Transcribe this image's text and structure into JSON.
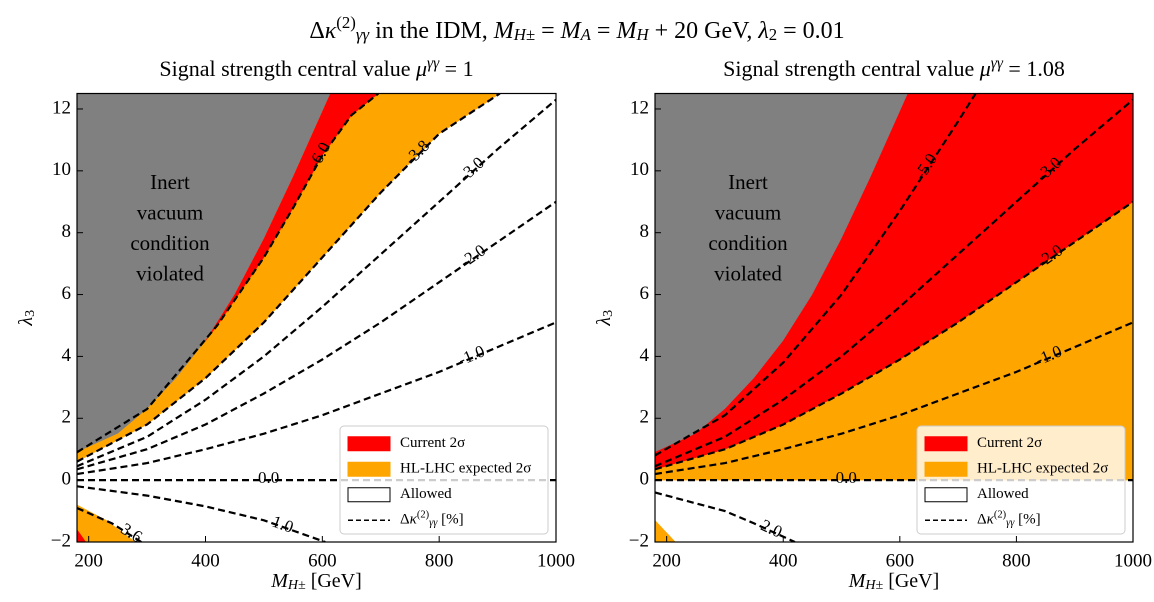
{
  "title": [
    {
      "text": "Δ"
    },
    {
      "text": "κ",
      "italic": true
    },
    {
      "text": "(2)",
      "pos": "sup"
    },
    {
      "text": "γγ",
      "pos": "sub",
      "italic": true
    },
    {
      "text": " in the IDM, "
    },
    {
      "text": "M",
      "italic": true
    },
    {
      "text": "H±",
      "pos": "sub",
      "italic": true
    },
    {
      "text": " = "
    },
    {
      "text": "M",
      "italic": true
    },
    {
      "text": "A",
      "pos": "sub",
      "italic": true
    },
    {
      "text": " = "
    },
    {
      "text": "M",
      "italic": true
    },
    {
      "text": "H",
      "pos": "sub",
      "italic": true
    },
    {
      "text": " + 20 GeV,  "
    },
    {
      "text": "λ",
      "italic": true
    },
    {
      "text": "2",
      "pos": "sub"
    },
    {
      "text": " = 0.01"
    }
  ],
  "chart_data": [
    {
      "type": "contour",
      "subtitle": [
        {
          "text": "Signal strength central value "
        },
        {
          "text": "μ",
          "italic": true
        },
        {
          "text": "γγ",
          "pos": "sup",
          "italic": true
        },
        {
          "text": " = 1"
        }
      ],
      "xlabel": [
        {
          "text": "M",
          "italic": true
        },
        {
          "text": "H±",
          "pos": "sub",
          "italic": true
        },
        {
          "text": " [GeV]"
        }
      ],
      "ylabel": [
        {
          "text": "λ",
          "italic": true
        },
        {
          "text": "3",
          "pos": "sub"
        }
      ],
      "xlim": [
        180,
        1000
      ],
      "ylim": [
        -2,
        12.5
      ],
      "xticks": [
        200,
        400,
        600,
        800,
        1000
      ],
      "yticks": [
        {
          "value": -2,
          "label": "−2"
        },
        0,
        2,
        4,
        6,
        8,
        10,
        12
      ],
      "legend_loc": "lower right",
      "regions": [
        {
          "name": "Current 2σ",
          "color": "#ff0000",
          "x": [
            400,
            450,
            500,
            550,
            614,
            696,
            650,
            600,
            550,
            500,
            420,
            null,
            180,
            195,
            180
          ],
          "y": [
            4.5,
            6.0,
            7.8,
            9.8,
            12.5,
            12.5,
            11.8,
            10.5,
            8.8,
            7.2,
            5.0,
            null,
            -1.6,
            -2,
            -2
          ]
        },
        {
          "name": "HL-LHC expected 2σ",
          "color": "#ffa500",
          "x": [
            180,
            250,
            300,
            350,
            400,
            450,
            500,
            550,
            614,
            904,
            800,
            700,
            600,
            500,
            400,
            300,
            180,
            null,
            180,
            230,
            280,
            180
          ],
          "y": [
            0.9,
            1.5,
            2.3,
            3.3,
            4.5,
            6.0,
            7.8,
            9.8,
            12.5,
            12.5,
            11.2,
            9.3,
            7.2,
            5.1,
            3.3,
            1.8,
            0.6,
            null,
            -0.8,
            -1.3,
            -2,
            -2
          ]
        },
        {
          "name": "Allowed",
          "color": "#ffffff"
        },
        {
          "annotation": [
            "Inert",
            "vacuum",
            "condition",
            "violated"
          ],
          "color": "#808080",
          "x": [
            180,
            250,
            300,
            350,
            400,
            450,
            500,
            550,
            614,
            180
          ],
          "y": [
            0.9,
            1.5,
            2.3,
            3.3,
            4.5,
            6.0,
            7.8,
            9.8,
            12.5,
            12.5
          ]
        }
      ],
      "contour_legend": [
        {
          "text": "Δ"
        },
        {
          "text": "κ",
          "italic": true
        },
        {
          "text": "(2)",
          "pos": "sup"
        },
        {
          "text": "γγ",
          "pos": "sub",
          "italic": true
        },
        {
          "text": " [%]"
        }
      ],
      "contours": [
        {
          "label": "-1.0",
          "x": [
            180,
            300,
            400,
            500,
            600,
            700,
            800,
            900,
            1000
          ],
          "y": [
            0.2,
            0.55,
            1.0,
            1.5,
            2.1,
            2.8,
            3.5,
            4.3,
            5.1
          ]
        },
        {
          "label": "-2.0",
          "x": [
            180,
            300,
            400,
            500,
            600,
            700,
            800,
            900,
            1000
          ],
          "y": [
            0.35,
            1.0,
            1.8,
            2.8,
            3.9,
            5.1,
            6.4,
            7.7,
            9.0
          ]
        },
        {
          "label": "-3.0",
          "x": [
            180,
            300,
            400,
            500,
            600,
            700,
            800,
            900,
            1000
          ],
          "y": [
            0.45,
            1.4,
            2.6,
            4.0,
            5.6,
            7.3,
            9.0,
            10.7,
            12.3
          ]
        },
        {
          "label": "-3.8",
          "x": [
            180,
            300,
            400,
            500,
            600,
            700,
            800,
            904
          ],
          "y": [
            0.6,
            1.8,
            3.3,
            5.1,
            7.2,
            9.3,
            11.2,
            12.5
          ]
        },
        {
          "label": "-6.0",
          "x": [
            180,
            300,
            420,
            500,
            550,
            600,
            650,
            696
          ],
          "y": [
            0.9,
            2.3,
            5.0,
            7.2,
            8.8,
            10.5,
            11.8,
            12.5
          ]
        },
        {
          "label": "0.0",
          "x": [
            180,
            1000
          ],
          "y": [
            0,
            0
          ]
        },
        {
          "label": "1.0",
          "x": [
            180,
            300,
            400,
            500,
            605
          ],
          "y": [
            -0.2,
            -0.5,
            -0.85,
            -1.3,
            -2
          ]
        },
        {
          "label": "3.6",
          "x": [
            180,
            240,
            290
          ],
          "y": [
            -0.9,
            -1.4,
            -2
          ]
        }
      ]
    },
    {
      "type": "contour",
      "subtitle": [
        {
          "text": "Signal strength central value "
        },
        {
          "text": "μ",
          "italic": true
        },
        {
          "text": "γγ",
          "pos": "sup",
          "italic": true
        },
        {
          "text": " = 1.08"
        }
      ],
      "xlabel": [
        {
          "text": "M",
          "italic": true
        },
        {
          "text": "H±",
          "pos": "sub",
          "italic": true
        },
        {
          "text": " [GeV]"
        }
      ],
      "ylabel": [
        {
          "text": "λ",
          "italic": true
        },
        {
          "text": "3",
          "pos": "sub"
        }
      ],
      "xlim": [
        180,
        1000
      ],
      "ylim": [
        -2,
        12.5
      ],
      "xticks": [
        200,
        400,
        600,
        800,
        1000
      ],
      "yticks": [
        {
          "value": -2,
          "label": "−2"
        },
        0,
        2,
        4,
        6,
        8,
        10,
        12
      ],
      "legend_loc": "lower right",
      "regions": [
        {
          "name": "Current 2σ",
          "color": "#ff0000",
          "x": [
            180,
            300,
            400,
            500,
            600,
            700,
            800,
            900,
            1000,
            1000,
            614,
            550,
            500,
            450,
            400,
            350,
            300,
            250,
            180
          ],
          "y": [
            0.35,
            1.0,
            1.8,
            2.8,
            3.9,
            5.1,
            6.4,
            7.7,
            9.0,
            12.5,
            12.5,
            9.8,
            7.8,
            6.0,
            4.5,
            3.3,
            2.3,
            1.5,
            0.9
          ]
        },
        {
          "name": "HL-LHC expected 2σ",
          "color": "#ffa500",
          "x": [
            180,
            1000,
            1000,
            900,
            800,
            700,
            600,
            500,
            400,
            300,
            180,
            null,
            180,
            215,
            180
          ],
          "y": [
            0,
            0,
            9.0,
            7.7,
            6.4,
            5.1,
            3.9,
            2.8,
            1.8,
            1.0,
            0.35,
            null,
            -1.3,
            -2,
            -2
          ]
        },
        {
          "name": "Allowed",
          "color": "#ffffff"
        },
        {
          "annotation": [
            "Inert",
            "vacuum",
            "condition",
            "violated"
          ],
          "color": "#808080",
          "x": [
            180,
            250,
            300,
            350,
            400,
            450,
            500,
            550,
            614,
            180
          ],
          "y": [
            0.9,
            1.5,
            2.3,
            3.3,
            4.5,
            6.0,
            7.8,
            9.8,
            12.5,
            12.5
          ]
        }
      ],
      "contour_legend": [
        {
          "text": "Δ"
        },
        {
          "text": "κ",
          "italic": true
        },
        {
          "text": "(2)",
          "pos": "sup"
        },
        {
          "text": "γγ",
          "pos": "sub",
          "italic": true
        },
        {
          "text": " [%]"
        }
      ],
      "contours": [
        {
          "label": "-1.0",
          "x": [
            180,
            300,
            400,
            500,
            600,
            700,
            800,
            900,
            1000
          ],
          "y": [
            0.2,
            0.55,
            1.0,
            1.5,
            2.1,
            2.8,
            3.5,
            4.3,
            5.1
          ]
        },
        {
          "label": "-2.0",
          "x": [
            180,
            300,
            400,
            500,
            600,
            700,
            800,
            900,
            1000
          ],
          "y": [
            0.35,
            1.0,
            1.8,
            2.8,
            3.9,
            5.1,
            6.4,
            7.7,
            9.0
          ]
        },
        {
          "label": "-3.0",
          "x": [
            180,
            300,
            400,
            500,
            600,
            700,
            800,
            900,
            1000
          ],
          "y": [
            0.45,
            1.4,
            2.6,
            4.0,
            5.6,
            7.3,
            9.0,
            10.7,
            12.3
          ]
        },
        {
          "label": "-5.0",
          "x": [
            180,
            300,
            400,
            500,
            600,
            700,
            730
          ],
          "y": [
            0.8,
            2.1,
            3.8,
            6.0,
            8.7,
            11.6,
            12.5
          ]
        },
        {
          "label": "0.0",
          "x": [
            180,
            1000
          ],
          "y": [
            0,
            0
          ]
        },
        {
          "label": "2.0",
          "x": [
            180,
            300,
            350,
            420
          ],
          "y": [
            -0.4,
            -1.0,
            -1.4,
            -2
          ]
        }
      ]
    }
  ]
}
